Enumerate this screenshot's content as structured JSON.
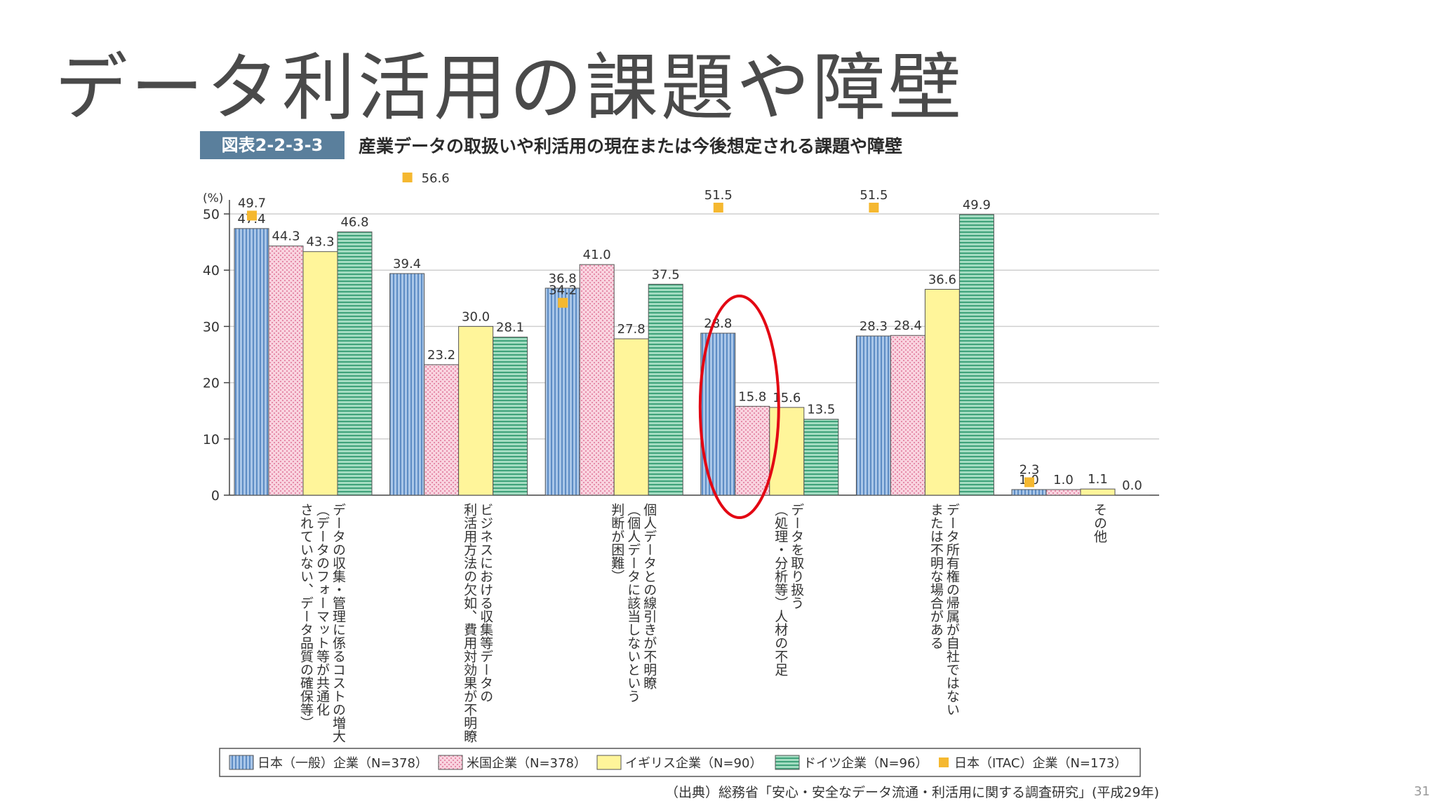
{
  "slide": {
    "title": "データ利活用の課題や障壁",
    "page_number": "31"
  },
  "figure": {
    "badge": "図表2-2-3-3",
    "caption": "産業データの取扱いや利活用の現在または今後想定される課題や障壁",
    "source": "（出典）総務省「安心・安全なデータ流通・利活用に関する調査研究」(平成29年)"
  },
  "colors": {
    "japan": "#9dbce0",
    "us": "#f5c3d3",
    "uk": "#fff59a",
    "germany": "#8fd3b4",
    "itac": "#f5b830",
    "highlight": "#e30613"
  },
  "chart_data": {
    "type": "bar",
    "ylabel": "(%)",
    "ylim": [
      0,
      50
    ],
    "yticks": [
      0,
      10,
      20,
      30,
      40,
      50
    ],
    "categories": [
      "データの収集・管理に係るコストの増大（データのフォーマット等が共通化されていない、データ品質の確保等）",
      "ビジネスにおける収集等データの利活用方法の欠如、費用対効果が不明瞭",
      "個人データとの線引きが不明瞭（個人データに該当しないという判断が困難）",
      "データを取り扱う（処理・分析等）人材の不足",
      "データ所有権の帰属が自社ではないまたは不明な場合がある",
      "その他"
    ],
    "category_lines": [
      [
        "データの収集・管理に係るコストの増大",
        "（データのフォーマット等が共通化",
        "されていない、データ品質の確保等）"
      ],
      [
        "ビジネスにおける収集等データの",
        "利活用方法の欠如、費用対効果が不明瞭"
      ],
      [
        "個人データとの線引きが不明瞭",
        "（個人データに該当しないという",
        "判断が困難）"
      ],
      [
        "データを取り扱う",
        "（処理・分析等）人材の不足"
      ],
      [
        "データ所有権の帰属が自社ではない",
        "または不明な場合がある"
      ],
      [
        "その他"
      ]
    ],
    "series": [
      {
        "name": "日本（一般）企業（N=378）",
        "key": "japan",
        "values": [
          47.4,
          39.4,
          36.8,
          28.8,
          28.3,
          1.0
        ]
      },
      {
        "name": "米国企業（N=378）",
        "key": "us",
        "values": [
          44.3,
          23.2,
          41.0,
          15.8,
          28.4,
          1.0
        ]
      },
      {
        "name": "イギリス企業（N=90）",
        "key": "uk",
        "values": [
          43.3,
          30.0,
          27.8,
          15.6,
          36.6,
          1.1
        ]
      },
      {
        "name": "ドイツ企業（N=96）",
        "key": "germany",
        "values": [
          46.8,
          28.1,
          37.5,
          13.5,
          49.9,
          0.0
        ]
      }
    ],
    "marker_series": {
      "name": "日本（ITAC）企業（N=173）",
      "key": "itac",
      "values": [
        49.7,
        56.6,
        34.2,
        51.5,
        51.5,
        2.3
      ]
    },
    "annotation": "highlight circle around 「データを取り扱う（処理・分析等）人材の不足」"
  }
}
